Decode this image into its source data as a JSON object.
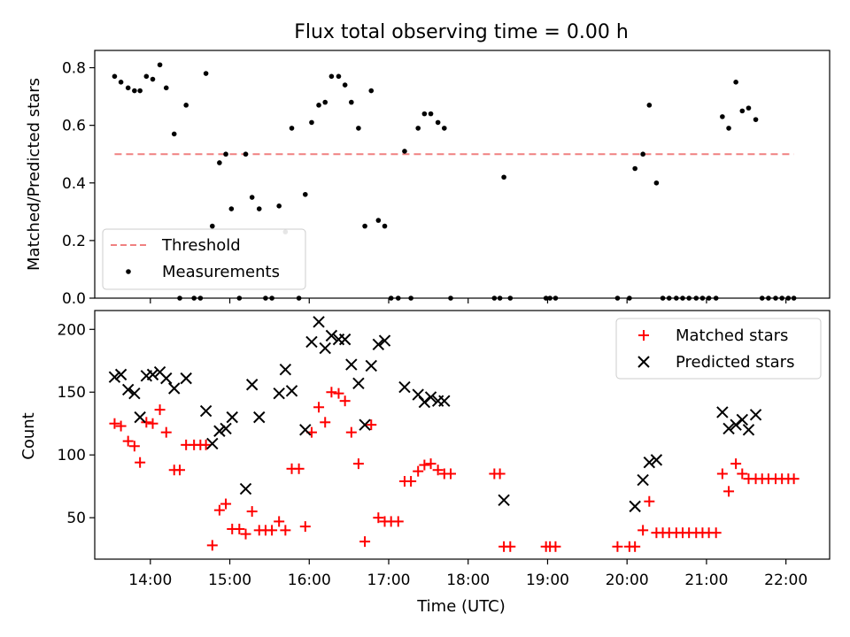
{
  "title": "Flux total observing time = 0.00 h",
  "chart_data": [
    {
      "type": "scatter",
      "ylabel": "Matched/Predicted stars",
      "xlim": [
        13.3,
        22.55
      ],
      "ylim": [
        0,
        0.86
      ],
      "yticks": [
        0.0,
        0.2,
        0.4,
        0.6,
        0.8
      ],
      "ytick_labels": [
        "0.0",
        "0.2",
        "0.4",
        "0.6",
        "0.8"
      ],
      "xticks": [
        14,
        15,
        16,
        17,
        18,
        19,
        20,
        21,
        22
      ],
      "legend_position": "lower-left",
      "threshold": {
        "name": "Threshold",
        "value": 0.5,
        "x_start": 13.55,
        "x_end": 22.1,
        "color": "#f08080"
      },
      "series": [
        {
          "name": "Measurements",
          "color": "#000000",
          "points": [
            [
              13.55,
              0.77
            ],
            [
              13.63,
              0.75
            ],
            [
              13.72,
              0.73
            ],
            [
              13.8,
              0.72
            ],
            [
              13.87,
              0.72
            ],
            [
              13.95,
              0.77
            ],
            [
              14.03,
              0.76
            ],
            [
              14.12,
              0.81
            ],
            [
              14.2,
              0.73
            ],
            [
              14.3,
              0.57
            ],
            [
              14.37,
              0.0
            ],
            [
              14.45,
              0.67
            ],
            [
              14.55,
              0.0
            ],
            [
              14.63,
              0.0
            ],
            [
              14.7,
              0.78
            ],
            [
              14.78,
              0.25
            ],
            [
              14.87,
              0.47
            ],
            [
              14.95,
              0.5
            ],
            [
              15.02,
              0.31
            ],
            [
              15.12,
              0.0
            ],
            [
              15.2,
              0.5
            ],
            [
              15.28,
              0.35
            ],
            [
              15.37,
              0.31
            ],
            [
              15.45,
              0.0
            ],
            [
              15.53,
              0.0
            ],
            [
              15.62,
              0.32
            ],
            [
              15.7,
              0.23
            ],
            [
              15.78,
              0.59
            ],
            [
              15.87,
              0.0
            ],
            [
              15.95,
              0.36
            ],
            [
              16.03,
              0.61
            ],
            [
              16.12,
              0.67
            ],
            [
              16.2,
              0.68
            ],
            [
              16.28,
              0.77
            ],
            [
              16.37,
              0.77
            ],
            [
              16.45,
              0.74
            ],
            [
              16.53,
              0.68
            ],
            [
              16.62,
              0.59
            ],
            [
              16.7,
              0.25
            ],
            [
              16.78,
              0.72
            ],
            [
              16.87,
              0.27
            ],
            [
              16.95,
              0.25
            ],
            [
              17.03,
              0.0
            ],
            [
              17.12,
              0.0
            ],
            [
              17.2,
              0.51
            ],
            [
              17.28,
              0.0
            ],
            [
              17.37,
              0.59
            ],
            [
              17.45,
              0.64
            ],
            [
              17.53,
              0.64
            ],
            [
              17.62,
              0.61
            ],
            [
              17.7,
              0.59
            ],
            [
              17.78,
              0.0
            ],
            [
              18.33,
              0.0
            ],
            [
              18.4,
              0.0
            ],
            [
              18.45,
              0.42
            ],
            [
              18.53,
              0.0
            ],
            [
              18.98,
              0.0
            ],
            [
              19.03,
              0.0
            ],
            [
              19.1,
              0.0
            ],
            [
              19.88,
              0.0
            ],
            [
              20.03,
              0.0
            ],
            [
              20.1,
              0.45
            ],
            [
              20.2,
              0.5
            ],
            [
              20.28,
              0.67
            ],
            [
              20.37,
              0.4
            ],
            [
              20.45,
              0.0
            ],
            [
              20.53,
              0.0
            ],
            [
              20.62,
              0.0
            ],
            [
              20.7,
              0.0
            ],
            [
              20.78,
              0.0
            ],
            [
              20.87,
              0.0
            ],
            [
              20.95,
              0.0
            ],
            [
              21.03,
              0.0
            ],
            [
              21.12,
              0.0
            ],
            [
              21.2,
              0.63
            ],
            [
              21.28,
              0.59
            ],
            [
              21.37,
              0.75
            ],
            [
              21.45,
              0.65
            ],
            [
              21.53,
              0.66
            ],
            [
              21.62,
              0.62
            ],
            [
              21.7,
              0.0
            ],
            [
              21.78,
              0.0
            ],
            [
              21.87,
              0.0
            ],
            [
              21.95,
              0.0
            ],
            [
              22.03,
              0.0
            ],
            [
              22.1,
              0.0
            ]
          ]
        }
      ]
    },
    {
      "type": "scatter",
      "xlabel": "Time (UTC)",
      "ylabel": "Count",
      "xlim": [
        13.3,
        22.55
      ],
      "ylim": [
        17,
        215
      ],
      "yticks": [
        50,
        100,
        150,
        200
      ],
      "ytick_labels": [
        "50",
        "100",
        "150",
        "200"
      ],
      "xticks": [
        14,
        15,
        16,
        17,
        18,
        19,
        20,
        21,
        22
      ],
      "xtick_labels": [
        "14:00",
        "15:00",
        "16:00",
        "17:00",
        "18:00",
        "19:00",
        "20:00",
        "21:00",
        "22:00"
      ],
      "legend_position": "upper-right",
      "series": [
        {
          "name": "Matched stars",
          "marker": "plus",
          "color": "#ff0000",
          "points": [
            [
              13.55,
              125
            ],
            [
              13.63,
              123
            ],
            [
              13.72,
              111
            ],
            [
              13.8,
              107
            ],
            [
              13.87,
              94
            ],
            [
              13.95,
              126
            ],
            [
              14.03,
              125
            ],
            [
              14.12,
              136
            ],
            [
              14.2,
              118
            ],
            [
              14.3,
              88
            ],
            [
              14.37,
              88
            ],
            [
              14.45,
              108
            ],
            [
              14.55,
              108
            ],
            [
              14.63,
              108
            ],
            [
              14.7,
              108
            ],
            [
              14.78,
              28
            ],
            [
              14.87,
              56
            ],
            [
              14.95,
              61
            ],
            [
              15.03,
              41
            ],
            [
              15.12,
              41
            ],
            [
              15.2,
              37
            ],
            [
              15.28,
              55
            ],
            [
              15.37,
              40
            ],
            [
              15.45,
              40
            ],
            [
              15.53,
              40
            ],
            [
              15.62,
              47
            ],
            [
              15.7,
              40
            ],
            [
              15.78,
              89
            ],
            [
              15.87,
              89
            ],
            [
              15.95,
              43
            ],
            [
              16.03,
              118
            ],
            [
              16.12,
              138
            ],
            [
              16.2,
              126
            ],
            [
              16.28,
              150
            ],
            [
              16.37,
              149
            ],
            [
              16.45,
              143
            ],
            [
              16.53,
              118
            ],
            [
              16.62,
              93
            ],
            [
              16.7,
              31
            ],
            [
              16.78,
              124
            ],
            [
              16.87,
              50
            ],
            [
              16.95,
              47
            ],
            [
              17.03,
              47
            ],
            [
              17.12,
              47
            ],
            [
              17.2,
              79
            ],
            [
              17.28,
              79
            ],
            [
              17.37,
              87
            ],
            [
              17.45,
              92
            ],
            [
              17.53,
              93
            ],
            [
              17.62,
              88
            ],
            [
              17.7,
              85
            ],
            [
              17.78,
              85
            ],
            [
              18.33,
              85
            ],
            [
              18.4,
              85
            ],
            [
              18.45,
              27
            ],
            [
              18.53,
              27
            ],
            [
              18.98,
              27
            ],
            [
              19.03,
              27
            ],
            [
              19.1,
              27
            ],
            [
              19.88,
              27
            ],
            [
              20.03,
              27
            ],
            [
              20.1,
              27
            ],
            [
              20.2,
              40
            ],
            [
              20.28,
              63
            ],
            [
              20.37,
              38
            ],
            [
              20.45,
              38
            ],
            [
              20.53,
              38
            ],
            [
              20.62,
              38
            ],
            [
              20.7,
              38
            ],
            [
              20.78,
              38
            ],
            [
              20.87,
              38
            ],
            [
              20.95,
              38
            ],
            [
              21.03,
              38
            ],
            [
              21.12,
              38
            ],
            [
              21.2,
              85
            ],
            [
              21.28,
              71
            ],
            [
              21.37,
              93
            ],
            [
              21.45,
              85
            ],
            [
              21.53,
              81
            ],
            [
              21.62,
              81
            ],
            [
              21.7,
              81
            ],
            [
              21.78,
              81
            ],
            [
              21.87,
              81
            ],
            [
              21.95,
              81
            ],
            [
              22.03,
              81
            ],
            [
              22.1,
              81
            ]
          ]
        },
        {
          "name": "Predicted stars",
          "marker": "x",
          "color": "#000000",
          "points": [
            [
              13.55,
              162
            ],
            [
              13.63,
              164
            ],
            [
              13.72,
              152
            ],
            [
              13.8,
              149
            ],
            [
              13.87,
              130
            ],
            [
              13.95,
              163
            ],
            [
              14.03,
              164
            ],
            [
              14.12,
              166
            ],
            [
              14.2,
              161
            ],
            [
              14.3,
              153
            ],
            [
              14.45,
              161
            ],
            [
              14.7,
              135
            ],
            [
              14.78,
              109
            ],
            [
              14.87,
              119
            ],
            [
              14.95,
              121
            ],
            [
              15.03,
              130
            ],
            [
              15.2,
              73
            ],
            [
              15.28,
              156
            ],
            [
              15.37,
              130
            ],
            [
              15.62,
              149
            ],
            [
              15.7,
              168
            ],
            [
              15.78,
              151
            ],
            [
              15.95,
              120
            ],
            [
              16.03,
              190
            ],
            [
              16.12,
              206
            ],
            [
              16.2,
              185
            ],
            [
              16.28,
              195
            ],
            [
              16.37,
              192
            ],
            [
              16.45,
              192
            ],
            [
              16.53,
              172
            ],
            [
              16.62,
              157
            ],
            [
              16.7,
              124
            ],
            [
              16.78,
              171
            ],
            [
              16.87,
              188
            ],
            [
              16.95,
              191
            ],
            [
              17.2,
              154
            ],
            [
              17.37,
              148
            ],
            [
              17.45,
              142
            ],
            [
              17.53,
              146
            ],
            [
              17.62,
              143
            ],
            [
              17.7,
              143
            ],
            [
              18.45,
              64
            ],
            [
              20.1,
              59
            ],
            [
              20.2,
              80
            ],
            [
              20.28,
              94
            ],
            [
              20.37,
              96
            ],
            [
              21.2,
              134
            ],
            [
              21.28,
              121
            ],
            [
              21.37,
              124
            ],
            [
              21.45,
              128
            ],
            [
              21.53,
              120
            ],
            [
              21.62,
              132
            ]
          ]
        }
      ]
    }
  ]
}
